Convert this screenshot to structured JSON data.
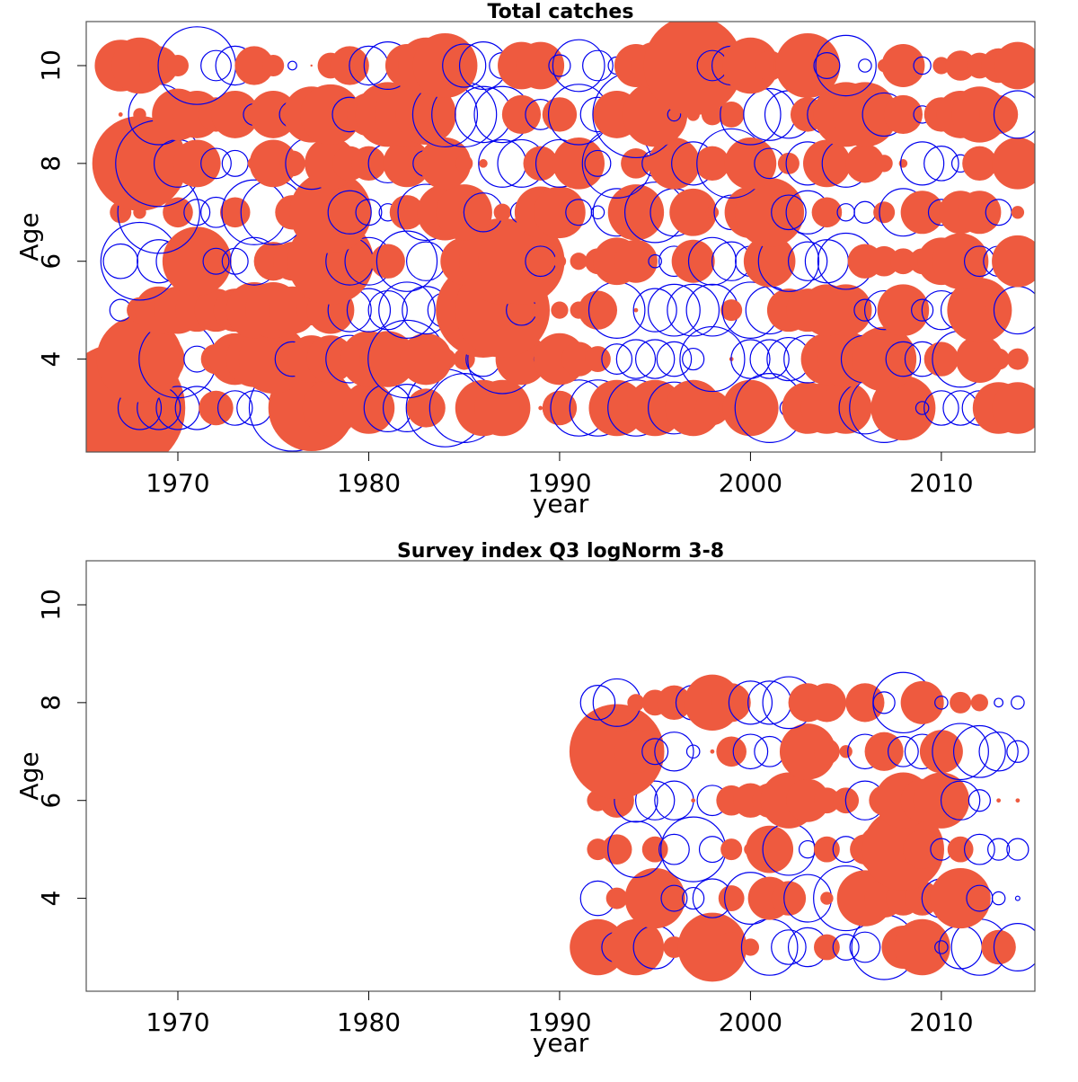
{
  "colors": {
    "positive": "#ee5a3f",
    "negative": "#0000ee",
    "axis": "#555555"
  },
  "chart_data": [
    {
      "type": "bubble-residuals",
      "title": "Total catches",
      "xlabel": "year",
      "ylabel": "Age",
      "xlim": [
        1965.2,
        2014.9
      ],
      "ylim": [
        2.1,
        10.9
      ],
      "x_ticks": [
        1970,
        1980,
        1990,
        2000,
        2010
      ],
      "y_ticks": [
        4,
        6,
        8,
        10
      ],
      "years": [
        1967,
        1968,
        1969,
        1970,
        1971,
        1972,
        1973,
        1974,
        1975,
        1976,
        1977,
        1978,
        1979,
        1980,
        1981,
        1982,
        1983,
        1984,
        1985,
        1986,
        1987,
        1988,
        1989,
        1990,
        1991,
        1992,
        1993,
        1994,
        1995,
        1996,
        1997,
        1998,
        1999,
        2000,
        2001,
        2002,
        2003,
        2004,
        2005,
        2006,
        2007,
        2008,
        2009,
        2010,
        2011,
        2012,
        2013,
        2014
      ],
      "ages": [
        3,
        4,
        5,
        6,
        7,
        8,
        9,
        10
      ],
      "residuals": {
        "3": [
          3.0,
          -1.0,
          -1.0,
          -1.0,
          -1.0,
          0.8,
          -0.8,
          -0.8,
          0.2,
          -2.0,
          2.0,
          1.3,
          0.3,
          1.2,
          -1.1,
          -1.1,
          0.9,
          -1.8,
          -1.6,
          1.3,
          1.3,
          0.1,
          0.1,
          0.8,
          -1.3,
          -1.3,
          1.3,
          -1.3,
          1.3,
          -1.2,
          1.3,
          0.8,
          0.6,
          1.3,
          -1.6,
          -0.4,
          1.2,
          1.2,
          1.2,
          -1.2,
          -1.6,
          1.5,
          -0.3,
          -0.8,
          -0.8,
          -0.8,
          1.2,
          1.2
        ],
        "4": [
          0.1,
          2.0,
          1.2,
          -1.8,
          -0.6,
          0.7,
          1.2,
          1.3,
          1.6,
          -0.8,
          1.1,
          1.1,
          -1.1,
          1.3,
          1.3,
          -1.8,
          1.2,
          0.5,
          0.5,
          -0.8,
          -1.6,
          1.2,
          -0.3,
          1.2,
          0.8,
          0.6,
          -0.7,
          -0.9,
          -0.9,
          -0.8,
          -0.5,
          -1.5,
          0.1,
          -0.9,
          -0.9,
          -1.0,
          -1.1,
          1.2,
          1.3,
          -1.1,
          1.5,
          -0.8,
          -0.8,
          0.8,
          -1.3,
          1.1,
          0.5,
          0.5
        ],
        "5": [
          -0.5,
          0.6,
          1.1,
          1.1,
          1.0,
          1.0,
          1.0,
          1.3,
          1.3,
          1.1,
          0.7,
          1.1,
          -1.0,
          -1.0,
          -0.9,
          -1.3,
          -1.1,
          -0.8,
          1.0,
          2.2,
          2.2,
          -0.7,
          0.4,
          0.4,
          0.4,
          0.9,
          -1.3,
          0.1,
          -1.0,
          -1.2,
          -1.2,
          -1.2,
          0.5,
          -1.3,
          -1.1,
          1.0,
          1.0,
          1.2,
          1.2,
          -0.5,
          -0.9,
          1.2,
          -0.5,
          -0.9,
          -0.9,
          1.5,
          0.6,
          -1.1
        ],
        "6": [
          -0.8,
          -1.8,
          -1.0,
          -1.0,
          1.6,
          -0.6,
          -0.6,
          -1.1,
          0.9,
          0.9,
          0.9,
          2.0,
          -1.1,
          -1.1,
          0.8,
          -1.4,
          -0.9,
          0.2,
          1.1,
          0.5,
          2.0,
          2.0,
          -0.7,
          0.3,
          0.4,
          0.6,
          1.1,
          1.0,
          -0.3,
          -0.7,
          1.0,
          -1.1,
          -0.9,
          -0.7,
          1.2,
          -1.4,
          -0.9,
          -1.0,
          -1.3,
          0.8,
          0.7,
          0.6,
          0.6,
          1.1,
          1.3,
          -0.7,
          -0.7,
          1.2
        ],
        "7": [
          0.5,
          0.3,
          -1.9,
          0.7,
          -0.6,
          -0.7,
          0.7,
          -1.5,
          -1.5,
          0.8,
          -0.8,
          1.9,
          -1.0,
          -0.6,
          -0.4,
          0.8,
          -1.3,
          1.3,
          1.3,
          -0.9,
          0.4,
          -0.5,
          1.2,
          1.2,
          -0.6,
          -0.3,
          -1.1,
          1.3,
          -1.4,
          -1.1,
          1.1,
          0.3,
          -0.8,
          1.2,
          1.6,
          -0.8,
          -1.0,
          0.7,
          -0.4,
          -0.5,
          0.5,
          -1.1,
          1.0,
          -0.6,
          1.0,
          1.0,
          -0.6,
          0.3
        ],
        "8": [
          0.6,
          2.2,
          -2.0,
          -1.1,
          1.1,
          -0.7,
          -0.6,
          0.3,
          1.1,
          0.6,
          -1.2,
          1.2,
          0.8,
          0.8,
          -0.9,
          1.1,
          -0.6,
          1.2,
          0.4,
          0.2,
          -1.1,
          -1.1,
          0.8,
          -1.1,
          1.2,
          -0.6,
          -1.6,
          0.7,
          -0.6,
          1.2,
          -1.0,
          0.8,
          -1.6,
          1.2,
          -0.7,
          0.5,
          -1.0,
          1.1,
          -1.1,
          0.9,
          0.4,
          0.2,
          -1.0,
          -0.8,
          -0.4,
          0.8,
          0.2,
          1.2
        ],
        "9": [
          0.1,
          0.3,
          -1.4,
          1.2,
          1.1,
          0.8,
          1.1,
          -0.5,
          1.1,
          -0.6,
          1.3,
          1.4,
          -0.8,
          1.0,
          1.5,
          1.5,
          1.4,
          -1.5,
          -1.5,
          -1.3,
          -1.3,
          0.9,
          -0.7,
          0.8,
          -1.4,
          -0.8,
          1.1,
          -2.0,
          1.5,
          -0.3,
          0.3,
          0.5,
          0.6,
          -1.4,
          -1.2,
          -1.1,
          0.8,
          -0.9,
          1.5,
          1.5,
          -1.0,
          0.9,
          -0.4,
          0.8,
          1.1,
          1.3,
          0.9,
          -1.1
        ],
        "10": [
          1.2,
          1.3,
          0.9,
          0.5,
          -1.8,
          -0.7,
          -0.9,
          0.9,
          0.5,
          -0.2,
          0.05,
          0.6,
          0.9,
          -0.9,
          -1.1,
          1.0,
          1.3,
          1.5,
          -1.0,
          -1.1,
          -0.6,
          1.1,
          1.1,
          -0.5,
          -1.2,
          -0.7,
          -0.4,
          1.0,
          1.1,
          1.3,
          2.3,
          -0.7,
          -0.9,
          1.3,
          0.7,
          0.7,
          1.5,
          -0.6,
          -1.4,
          -0.3,
          0.3,
          1.0,
          -0.4,
          0.4,
          0.7,
          0.6,
          0.8,
          1.1
        ]
      }
    },
    {
      "type": "bubble-residuals",
      "title": "Survey index Q3 logNorm 3-8",
      "xlabel": "year",
      "ylabel": "Age",
      "xlim": [
        1965.2,
        2014.9
      ],
      "ylim": [
        2.1,
        10.9
      ],
      "x_ticks": [
        1970,
        1980,
        1990,
        2000,
        2010
      ],
      "y_ticks": [
        4,
        6,
        8,
        10
      ],
      "years": [
        1992,
        1993,
        1994,
        1995,
        1996,
        1997,
        1998,
        1999,
        2000,
        2001,
        2002,
        2003,
        2004,
        2005,
        2006,
        2007,
        2008,
        2009,
        2010,
        2011,
        2012,
        2013,
        2014
      ],
      "ages": [
        3,
        4,
        5,
        6,
        7,
        8
      ],
      "residuals": {
        "3": [
          1.3,
          -0.7,
          1.3,
          -1.0,
          0.5,
          0.6,
          1.6,
          0.7,
          0.4,
          -1.3,
          -0.8,
          -0.9,
          0.6,
          -0.6,
          -0.7,
          -1.5,
          1.0,
          1.3,
          -0.3,
          -1.0,
          -1.3,
          0.8,
          -1.1
        ],
        "4": [
          -0.8,
          0.5,
          0.3,
          1.4,
          -0.6,
          -0.5,
          -0.9,
          0.6,
          -1.2,
          1.0,
          0.8,
          -1.1,
          0.3,
          -1.5,
          1.3,
          0.9,
          0.8,
          0.8,
          -0.9,
          1.4,
          -0.6,
          -0.3,
          -0.1
        ],
        "5": [
          0.5,
          0.7,
          -1.3,
          0.6,
          -0.7,
          -1.5,
          -0.6,
          0.5,
          0.3,
          1.1,
          -1.2,
          -0.4,
          0.6,
          -0.6,
          0.7,
          1.2,
          1.9,
          0.9,
          -0.5,
          0.6,
          -0.7,
          -0.5,
          -0.5
        ],
        "6": [
          0.5,
          0.8,
          -1.0,
          -0.9,
          -0.9,
          0.1,
          -0.7,
          0.7,
          0.8,
          0.8,
          1.3,
          1.0,
          0.6,
          0.6,
          -0.9,
          0.7,
          1.3,
          1.0,
          1.3,
          -0.9,
          -0.5,
          0.1,
          0.1
        ],
        "7": [
          -0.7,
          2.2,
          1.0,
          -0.6,
          -0.9,
          -0.3,
          0.1,
          0.7,
          -0.8,
          -0.7,
          0.2,
          1.3,
          0.6,
          0.3,
          -0.8,
          0.9,
          -0.7,
          -0.8,
          1.0,
          -1.3,
          -1.2,
          -0.9,
          -0.5
        ],
        "8": [
          -0.8,
          -1.1,
          0.4,
          0.6,
          0.8,
          -0.8,
          1.3,
          0.9,
          -1.0,
          -1.0,
          -1.2,
          0.9,
          0.9,
          0.05,
          0.9,
          -0.5,
          -1.4,
          1.0,
          -0.3,
          0.5,
          0.4,
          -0.2,
          -0.3
        ]
      }
    }
  ]
}
